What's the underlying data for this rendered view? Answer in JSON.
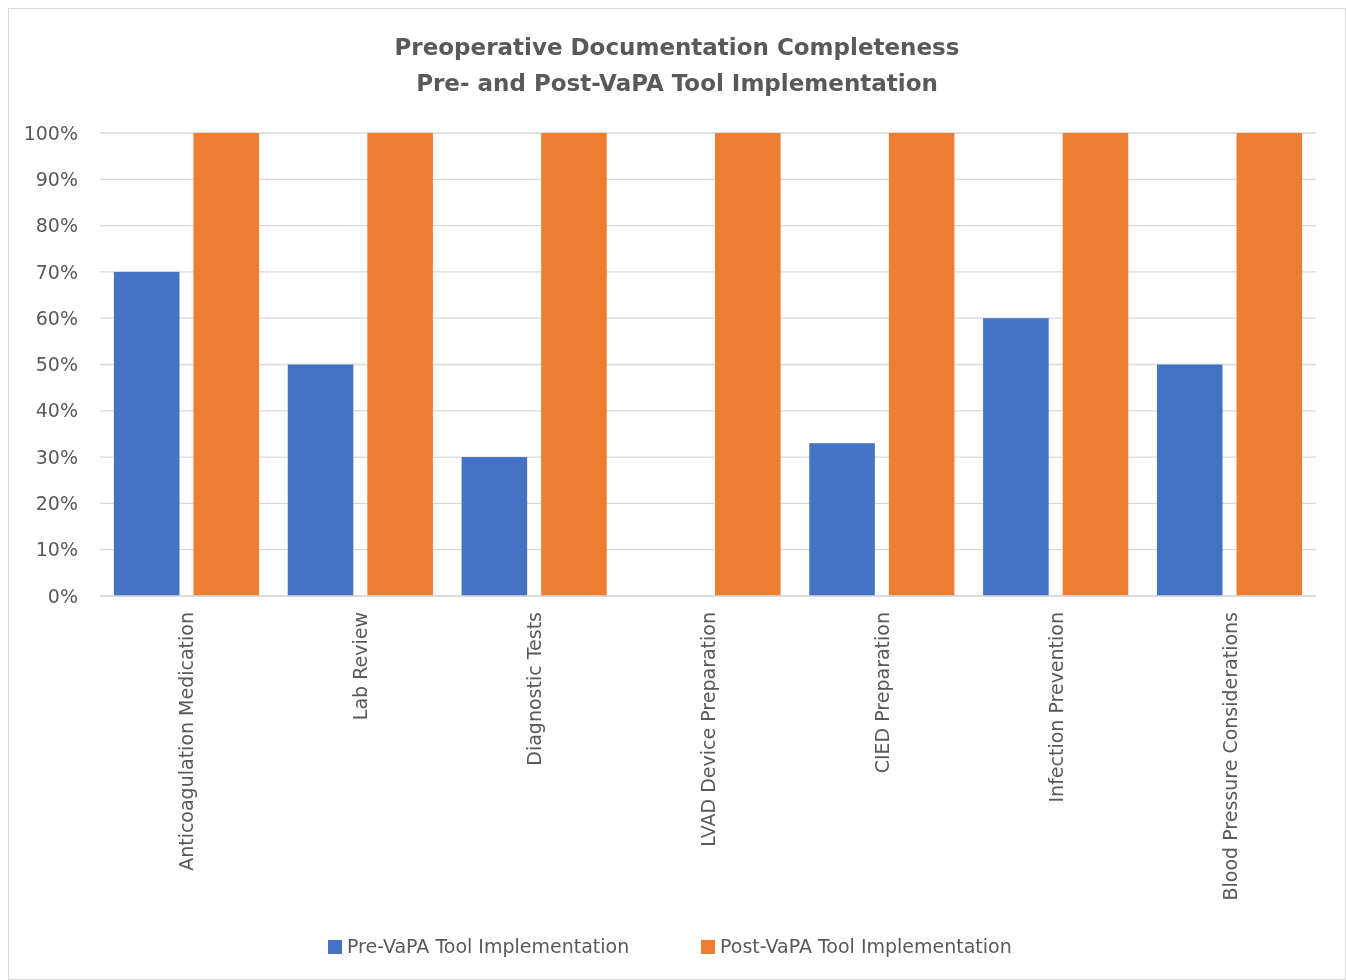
{
  "chart_data": {
    "type": "bar",
    "title": "Preoperative Documentation Completeness\nPre- and Post-VaPA Tool Implementation",
    "categories": [
      "Anticoagulation Medication",
      "Lab Review",
      "Diagnostic Tests",
      "LVAD Device Preparation",
      "CIED Preparation",
      "Infection Prevention",
      "Blood Pressure Considerations"
    ],
    "series": [
      {
        "name": "Pre-VaPA Tool Implementation",
        "color": "#4472c4",
        "values": [
          70,
          50,
          30,
          0,
          33,
          60,
          50
        ]
      },
      {
        "name": "Post-VaPA Tool Implementation",
        "color": "#ed7d31",
        "values": [
          100,
          100,
          100,
          100,
          100,
          100,
          100
        ]
      }
    ],
    "ylim": [
      0,
      100
    ],
    "yticks": [
      {
        "value": 0,
        "label": "0%"
      },
      {
        "value": 10,
        "label": "10%"
      },
      {
        "value": 20,
        "label": "20%"
      },
      {
        "value": 30,
        "label": "30%"
      },
      {
        "value": 40,
        "label": "40%"
      },
      {
        "value": 50,
        "label": "50%"
      },
      {
        "value": 60,
        "label": "60%"
      },
      {
        "value": 70,
        "label": "70%"
      },
      {
        "value": 80,
        "label": "80%"
      },
      {
        "value": 90,
        "label": "90%"
      },
      {
        "value": 100,
        "label": "100%"
      }
    ],
    "grid": "y",
    "legend": "bottom"
  }
}
